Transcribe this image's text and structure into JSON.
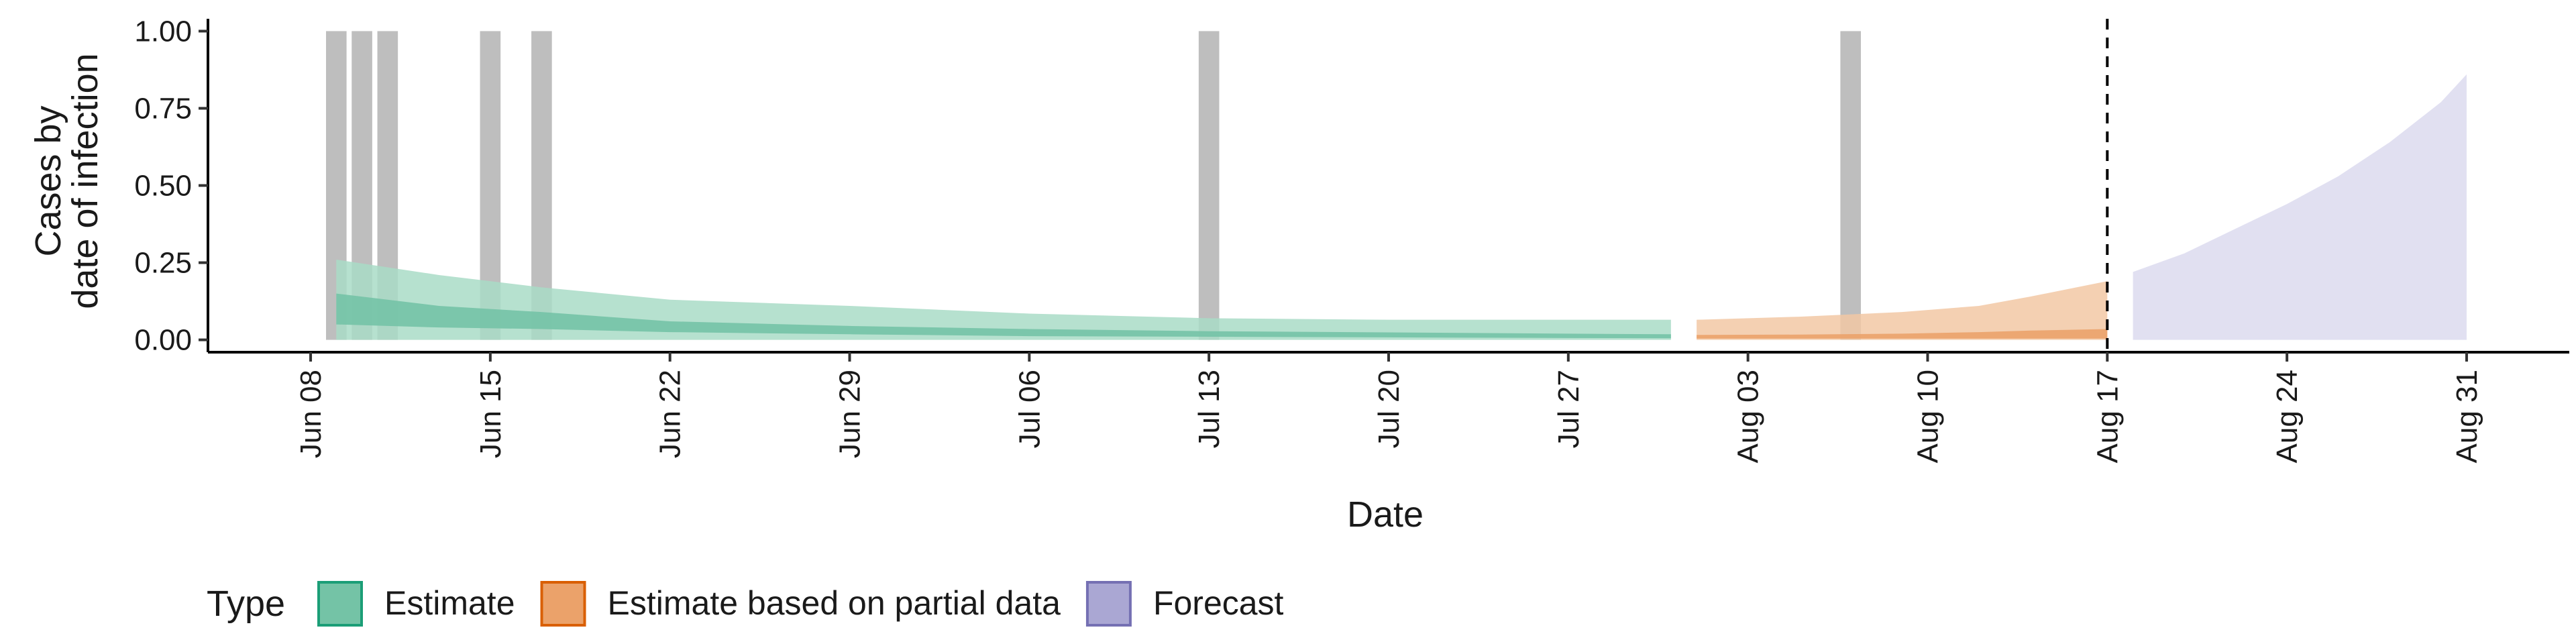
{
  "chart_data": {
    "type": "area",
    "title": "",
    "xlabel": "Date",
    "ylabel": [
      "Cases by",
      "date of infection"
    ],
    "x_start": "2020-06-04",
    "x_end": "2020-09-04",
    "x_ticks": [
      "Jun 08",
      "Jun 15",
      "Jun 22",
      "Jun 29",
      "Jul 06",
      "Jul 13",
      "Jul 20",
      "Jul 27",
      "Aug 03",
      "Aug 10",
      "Aug 17",
      "Aug 24",
      "Aug 31"
    ],
    "x_tick_dates": [
      "2020-06-08",
      "2020-06-15",
      "2020-06-22",
      "2020-06-29",
      "2020-07-06",
      "2020-07-13",
      "2020-07-20",
      "2020-07-27",
      "2020-08-03",
      "2020-08-10",
      "2020-08-17",
      "2020-08-24",
      "2020-08-31"
    ],
    "ylim": [
      -0.04,
      1.04
    ],
    "y_ticks": [
      0,
      0.25,
      0.5,
      0.75,
      1
    ],
    "y_tick_labels": [
      "0.00",
      "0.25",
      "0.50",
      "0.75",
      "1.00"
    ],
    "grid": false,
    "legend": {
      "title": "Type",
      "placement": "bottom-left",
      "items": [
        {
          "label": "Estimate",
          "fill": "#74c3a6",
          "stroke": "#1b9e77"
        },
        {
          "label": "Estimate based on partial data",
          "fill": "#eba26a",
          "stroke": "#d95f02"
        },
        {
          "label": "Forecast",
          "fill": "#aaa7d3",
          "stroke": "#7570b3"
        }
      ]
    },
    "forecast_start_date": "2020-08-17",
    "case_bars": {
      "color": "#bebebe",
      "points": [
        {
          "date": "2020-06-09",
          "value": 1
        },
        {
          "date": "2020-06-10",
          "value": 1
        },
        {
          "date": "2020-06-11",
          "value": 1
        },
        {
          "date": "2020-06-15",
          "value": 1
        },
        {
          "date": "2020-06-17",
          "value": 1
        },
        {
          "date": "2020-07-13",
          "value": 1
        },
        {
          "date": "2020-08-07",
          "value": 1
        }
      ]
    },
    "series": [
      {
        "type": "Estimate",
        "colors": {
          "outer": "#a9dcc7",
          "inner": "#74c3a6"
        },
        "points": [
          {
            "date": "2020-06-09",
            "lower90": 0,
            "upper90": 0.26,
            "lower50": 0.05,
            "upper50": 0.15
          },
          {
            "date": "2020-06-13",
            "lower90": 0,
            "upper90": 0.21,
            "lower50": 0.04,
            "upper50": 0.11
          },
          {
            "date": "2020-06-17",
            "lower90": 0,
            "upper90": 0.17,
            "lower50": 0.035,
            "upper50": 0.09
          },
          {
            "date": "2020-06-22",
            "lower90": 0,
            "upper90": 0.13,
            "lower50": 0.025,
            "upper50": 0.06
          },
          {
            "date": "2020-06-29",
            "lower90": 0,
            "upper90": 0.11,
            "lower50": 0.018,
            "upper50": 0.045
          },
          {
            "date": "2020-07-06",
            "lower90": 0,
            "upper90": 0.085,
            "lower50": 0.012,
            "upper50": 0.035
          },
          {
            "date": "2020-07-13",
            "lower90": 0,
            "upper90": 0.07,
            "lower50": 0.01,
            "upper50": 0.028
          },
          {
            "date": "2020-07-20",
            "lower90": 0,
            "upper90": 0.065,
            "lower50": 0.008,
            "upper50": 0.024
          },
          {
            "date": "2020-07-27",
            "lower90": 0,
            "upper90": 0.065,
            "lower50": 0.006,
            "upper50": 0.02
          },
          {
            "date": "2020-07-31",
            "lower90": 0,
            "upper90": 0.065,
            "lower50": 0.005,
            "upper50": 0.018
          }
        ]
      },
      {
        "type": "Estimate based on partial data",
        "colors": {
          "outer": "#f2c8a5",
          "inner": "#eba26a"
        },
        "points": [
          {
            "date": "2020-08-01",
            "lower90": 0,
            "upper90": 0.065,
            "lower50": 0.004,
            "upper50": 0.016
          },
          {
            "date": "2020-08-05",
            "lower90": 0,
            "upper90": 0.075,
            "lower50": 0.004,
            "upper50": 0.017
          },
          {
            "date": "2020-08-09",
            "lower90": 0,
            "upper90": 0.09,
            "lower50": 0.004,
            "upper50": 0.02
          },
          {
            "date": "2020-08-12",
            "lower90": 0,
            "upper90": 0.11,
            "lower50": 0.004,
            "upper50": 0.025
          },
          {
            "date": "2020-08-14",
            "lower90": 0,
            "upper90": 0.14,
            "lower50": 0.004,
            "upper50": 0.03
          },
          {
            "date": "2020-08-17",
            "lower90": 0,
            "upper90": 0.19,
            "lower50": 0.004,
            "upper50": 0.035
          }
        ]
      },
      {
        "type": "Forecast",
        "colors": {
          "outer": "#dcdaee",
          "inner": "#aaa7d3"
        },
        "points": [
          {
            "date": "2020-08-18",
            "lower90": 0,
            "upper90": 0.22
          },
          {
            "date": "2020-08-20",
            "lower90": 0,
            "upper90": 0.28
          },
          {
            "date": "2020-08-22",
            "lower90": 0,
            "upper90": 0.36
          },
          {
            "date": "2020-08-24",
            "lower90": 0,
            "upper90": 0.44
          },
          {
            "date": "2020-08-26",
            "lower90": 0,
            "upper90": 0.53
          },
          {
            "date": "2020-08-28",
            "lower90": 0,
            "upper90": 0.64
          },
          {
            "date": "2020-08-30",
            "lower90": 0,
            "upper90": 0.77
          },
          {
            "date": "2020-08-31",
            "lower90": 0,
            "upper90": 0.86
          }
        ]
      }
    ]
  }
}
